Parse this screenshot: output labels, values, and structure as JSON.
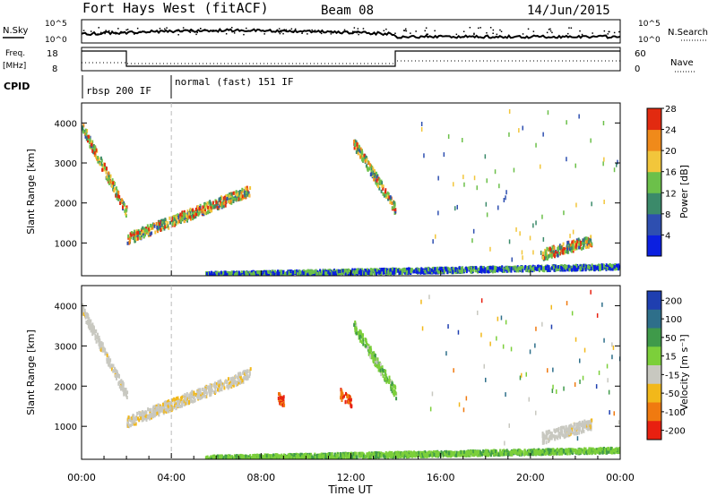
{
  "header": {
    "title": "Fort Hays West (fitACF)",
    "beam": "Beam 08",
    "date": "14/Jun/2015"
  },
  "top_panels": {
    "nsky_label": "N.Sky",
    "nsearch_label": "N.Search",
    "noise_ticks_left": [
      "10^5",
      "10^0"
    ],
    "noise_ticks_right": [
      "10^5",
      "10^0"
    ],
    "freq_label_top": "Freq.",
    "freq_label_unit": "[MHz]",
    "freq_ticks": [
      "18",
      "8"
    ],
    "nave_label": "Nave",
    "nave_ticks": [
      "60",
      "0"
    ],
    "cpid_label": "CPID",
    "cpid_segments": [
      "rbsp 200 IF",
      "normal (fast) 151 IF"
    ]
  },
  "chart_data": [
    {
      "type": "heatmap",
      "title": "",
      "xlabel": "",
      "ylabel": "Slant Range [km]",
      "x_range_hours": [
        0,
        24
      ],
      "ylim": [
        180,
        4500
      ],
      "y_ticks": [
        1000,
        2000,
        3000,
        4000
      ],
      "colorbar": {
        "label": "Power [dB]",
        "ticks": [
          "4",
          "8",
          "12",
          "16",
          "20",
          "24",
          "28"
        ],
        "colors": [
          "#0b1fe0",
          "#2e4fb0",
          "#3b8a6a",
          "#6cc04a",
          "#f2c63b",
          "#f08a1a",
          "#e22a10"
        ]
      },
      "features": [
        {
          "start_h": 0.0,
          "end_h": 2.0,
          "range_start_km": 3900,
          "range_end_km": 1750,
          "dominant": "power 16-28 dB"
        },
        {
          "start_h": 2.0,
          "end_h": 7.5,
          "range_start_km": 1100,
          "range_end_km": 2300,
          "dominant": "power 12-28 dB"
        },
        {
          "start_h": 12.1,
          "end_h": 14.0,
          "range_start_km": 3500,
          "range_end_km": 1800,
          "dominant": "power 8-16 dB"
        },
        {
          "start_h": 20.5,
          "end_h": 22.7,
          "range_start_km": 700,
          "range_end_km": 1050,
          "dominant": "power 8-16 dB"
        },
        {
          "start_h": 5.5,
          "end_h": 24.0,
          "range_start_km": 200,
          "range_end_km": 400,
          "dominant": "ground scatter"
        }
      ]
    },
    {
      "type": "heatmap",
      "title": "",
      "xlabel": "Time UT",
      "ylabel": "Slant Range [km]",
      "x_range_hours": [
        0,
        24
      ],
      "x_ticks": [
        "00:00",
        "04:00",
        "08:00",
        "12:00",
        "16:00",
        "20:00",
        "00:00"
      ],
      "ylim": [
        180,
        4500
      ],
      "y_ticks": [
        1000,
        2000,
        3000,
        4000
      ],
      "colorbar": {
        "label": "Velocity [m s⁻¹]",
        "ticks": [
          "200",
          "100",
          "50",
          "15",
          "-15",
          "-50",
          "-100",
          "-200"
        ],
        "colors": [
          "#1f3fb0",
          "#2e6f8a",
          "#3f9a4a",
          "#7ccf3a",
          "#c8c8c0",
          "#f2b81a",
          "#f07a10",
          "#e82010"
        ]
      },
      "features": [
        {
          "start_h": 0.0,
          "end_h": 2.0,
          "range_start_km": 3900,
          "range_end_km": 1750,
          "dominant": "velocity -15 to 15"
        },
        {
          "start_h": 2.0,
          "end_h": 7.5,
          "range_start_km": 1100,
          "range_end_km": 2300,
          "dominant": "velocity -15 to 15 with -50 patches"
        },
        {
          "start_h": 8.7,
          "end_h": 9.0,
          "range_start_km": 1750,
          "range_end_km": 1600,
          "dominant": "velocity -200 to -100"
        },
        {
          "start_h": 11.5,
          "end_h": 12.0,
          "range_start_km": 1800,
          "range_end_km": 1600,
          "dominant": "velocity -200 to -100"
        },
        {
          "start_h": 12.1,
          "end_h": 14.0,
          "range_start_km": 3500,
          "range_end_km": 1800,
          "dominant": "velocity 15 to 100"
        },
        {
          "start_h": 20.5,
          "end_h": 22.7,
          "range_start_km": 700,
          "range_end_km": 1050,
          "dominant": "velocity -15 to 15"
        },
        {
          "start_h": 5.5,
          "end_h": 24.0,
          "range_start_km": 200,
          "range_end_km": 400,
          "dominant": "velocity 15 to 50"
        }
      ]
    }
  ]
}
